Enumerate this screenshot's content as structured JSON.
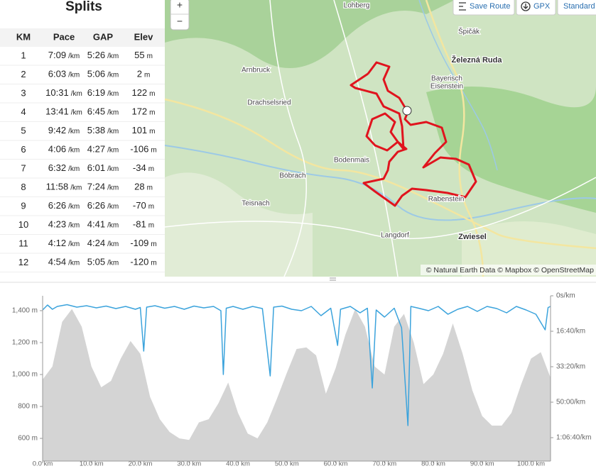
{
  "splits": {
    "title": "Splits",
    "columns": [
      "KM",
      "Pace",
      "GAP",
      "Elev"
    ],
    "units": {
      "pace": "/km",
      "elev": "m"
    },
    "rows": [
      {
        "km": "1",
        "pace": "7:09",
        "gap": "5:26",
        "elev": "55"
      },
      {
        "km": "2",
        "pace": "6:03",
        "gap": "5:06",
        "elev": "2"
      },
      {
        "km": "3",
        "pace": "10:31",
        "gap": "6:19",
        "elev": "122"
      },
      {
        "km": "4",
        "pace": "13:41",
        "gap": "6:45",
        "elev": "172"
      },
      {
        "km": "5",
        "pace": "9:42",
        "gap": "5:38",
        "elev": "101"
      },
      {
        "km": "6",
        "pace": "4:06",
        "gap": "4:27",
        "elev": "-106"
      },
      {
        "km": "7",
        "pace": "6:32",
        "gap": "6:01",
        "elev": "-34"
      },
      {
        "km": "8",
        "pace": "11:58",
        "gap": "7:24",
        "elev": "28"
      },
      {
        "km": "9",
        "pace": "6:26",
        "gap": "6:26",
        "elev": "-70"
      },
      {
        "km": "10",
        "pace": "4:23",
        "gap": "4:41",
        "elev": "-81"
      },
      {
        "km": "11",
        "pace": "4:12",
        "gap": "4:24",
        "elev": "-109"
      },
      {
        "km": "12",
        "pace": "4:54",
        "gap": "5:05",
        "elev": "-120"
      }
    ]
  },
  "map": {
    "buttons": {
      "zoom_in": "+",
      "zoom_out": "−",
      "save_route": "Save Route",
      "gpx": "GPX",
      "style": "Standard"
    },
    "places": [
      "Lohberg",
      "Špičák",
      "Železná Ruda",
      "Arnbruck",
      "Bayerisch",
      "Eisenstein",
      "Drachselsried",
      "Bodenmais",
      "Böbrach",
      "Teisnach",
      "Rabenstein",
      "Langdorf",
      "Zwiesel"
    ],
    "attribution": "© Natural Earth Data © Mapbox © OpenStreetMap"
  },
  "chart_data": {
    "type": "line",
    "xlim": [
      0,
      104
    ],
    "ylim": [
      458,
      1493
    ],
    "y2lim": [
      0,
      4660
    ],
    "y2_inverted": true,
    "xticks": [
      {
        "value": 0,
        "label": "0.0 km"
      },
      {
        "value": 10,
        "label": "10.0 km"
      },
      {
        "value": 20,
        "label": "20.0 km"
      },
      {
        "value": 30,
        "label": "30.0 km"
      },
      {
        "value": 40,
        "label": "40.0 km"
      },
      {
        "value": 50,
        "label": "50.0 km"
      },
      {
        "value": 60,
        "label": "60.0 km"
      },
      {
        "value": 70,
        "label": "70.0 km"
      },
      {
        "value": 80,
        "label": "80.0 km"
      },
      {
        "value": 90,
        "label": "90.0 km"
      },
      {
        "value": 100,
        "label": "100.0 km"
      }
    ],
    "yticks": [
      {
        "value": 600,
        "label": "600 m"
      },
      {
        "value": 800,
        "label": "800 m"
      },
      {
        "value": 1000,
        "label": "1,000 m"
      },
      {
        "value": 1200,
        "label": "1,200 m"
      },
      {
        "value": 1400,
        "label": "1,400 m"
      }
    ],
    "y2ticks": [
      {
        "value": 0,
        "label": "0s/km"
      },
      {
        "value": 1000,
        "label": "16:40/km"
      },
      {
        "value": 2000,
        "label": "33:20/km"
      },
      {
        "value": 3000,
        "label": "50:00/km"
      },
      {
        "value": 4000,
        "label": "1:06:40/km"
      }
    ],
    "series": [
      {
        "type": "area",
        "color": "#d4d4d4",
        "x": [
          0,
          2,
          4,
          6,
          8,
          10,
          12,
          14,
          16,
          18,
          20,
          22,
          24,
          26,
          28,
          30,
          32,
          34,
          36,
          38,
          40,
          42,
          44,
          46,
          48,
          50,
          52,
          54,
          56,
          58,
          60,
          62,
          64,
          66,
          68,
          70,
          72,
          74,
          76,
          78,
          80,
          82,
          84,
          86,
          88,
          90,
          92,
          94,
          96,
          98,
          100,
          102,
          104
        ],
        "values": [
          969,
          1050,
          1330,
          1410,
          1300,
          1050,
          920,
          960,
          1100,
          1210,
          1130,
          860,
          720,
          640,
          600,
          590,
          700,
          720,
          820,
          950,
          760,
          630,
          600,
          700,
          850,
          1010,
          1160,
          1170,
          1120,
          880,
          1040,
          1250,
          1410,
          1300,
          1050,
          1000,
          1300,
          1380,
          1200,
          940,
          1000,
          1130,
          1320,
          1130,
          900,
          740,
          680,
          680,
          760,
          940,
          1100,
          1140,
          980
        ]
      },
      {
        "type": "line",
        "axis": "y2",
        "color": "#3ba3dc",
        "x": [
          0,
          1,
          2,
          3,
          5,
          7,
          9,
          11,
          13,
          15,
          17,
          19,
          20,
          20.7,
          21.3,
          23,
          25,
          27,
          29,
          31,
          33,
          35,
          36.5,
          37,
          37.6,
          39,
          41,
          43,
          45,
          46.6,
          47.3,
          49,
          51,
          53,
          55,
          57,
          59,
          60.4,
          61,
          63,
          65,
          66.5,
          67.5,
          68.3,
          70,
          72,
          73.5,
          74.8,
          75.4,
          77,
          79,
          81,
          83,
          85,
          87,
          89,
          91,
          93,
          95,
          97,
          99,
          101,
          102.9,
          103.5,
          104
        ],
        "values": [
          400,
          260,
          380,
          300,
          250,
          320,
          280,
          340,
          290,
          360,
          300,
          380,
          330,
          1560,
          320,
          280,
          350,
          300,
          380,
          290,
          340,
          300,
          420,
          2220,
          350,
          300,
          380,
          300,
          360,
          2260,
          320,
          290,
          380,
          420,
          300,
          560,
          350,
          1400,
          380,
          300,
          480,
          350,
          2600,
          400,
          600,
          350,
          900,
          3660,
          300,
          350,
          420,
          300,
          520,
          380,
          300,
          440,
          300,
          360,
          480,
          300,
          400,
          520,
          960,
          330,
          300
        ]
      }
    ]
  }
}
